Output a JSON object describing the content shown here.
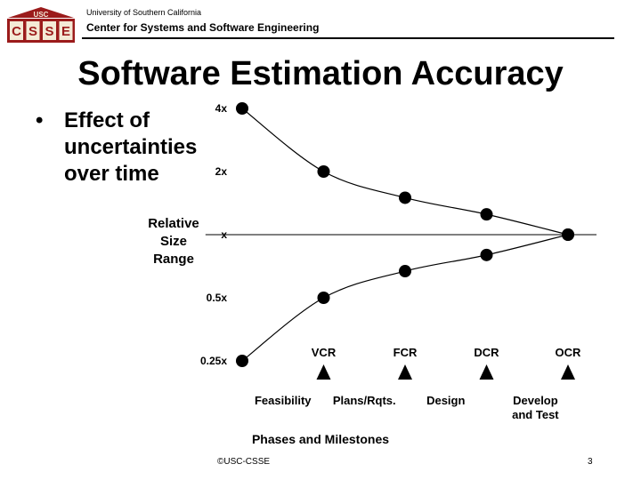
{
  "header": {
    "university": "University of Southern California",
    "center": "Center for Systems and Software Engineering",
    "logo_top": "USC",
    "logo_letters": [
      "C",
      "S",
      "S",
      "E"
    ]
  },
  "slide": {
    "title": "Software Estimation Accuracy",
    "bullet": "•",
    "bullet_text": "Effect of\nuncertainties\nover time"
  },
  "chart_data": {
    "type": "line",
    "ylabel": "Relative\nSize\nRange",
    "xlabel": "Phases and Milestones",
    "y_scale": "log",
    "y_ticks": [
      {
        "value": 4,
        "label": "4x"
      },
      {
        "value": 2,
        "label": "2x"
      },
      {
        "value": 1,
        "label": "x"
      },
      {
        "value": 0.5,
        "label": "0.5x"
      },
      {
        "value": 0.25,
        "label": "0.25x"
      }
    ],
    "x": [
      0,
      1,
      2,
      3,
      4
    ],
    "milestones": [
      "VCR",
      "FCR",
      "DCR",
      "OCR"
    ],
    "milestone_x": [
      1,
      2,
      3,
      4
    ],
    "phases": [
      {
        "label": "Feasibility",
        "x": 0.5
      },
      {
        "label": "Plans/Rqts.",
        "x": 1.5
      },
      {
        "label": "Design",
        "x": 2.5
      },
      {
        "label": "Develop\nand Test",
        "x": 3.6
      }
    ],
    "series": [
      {
        "values": [
          4,
          2,
          1.5,
          1.25,
          1
        ]
      },
      {
        "values": [
          0.25,
          0.5,
          0.67,
          0.8,
          1
        ]
      }
    ]
  },
  "footer": {
    "copyright": "©USC-CSSE",
    "page": "3"
  },
  "colors": {
    "logo_red": "#9b1b1b",
    "logo_fill": "#f4ead6",
    "ink": "#000000"
  }
}
